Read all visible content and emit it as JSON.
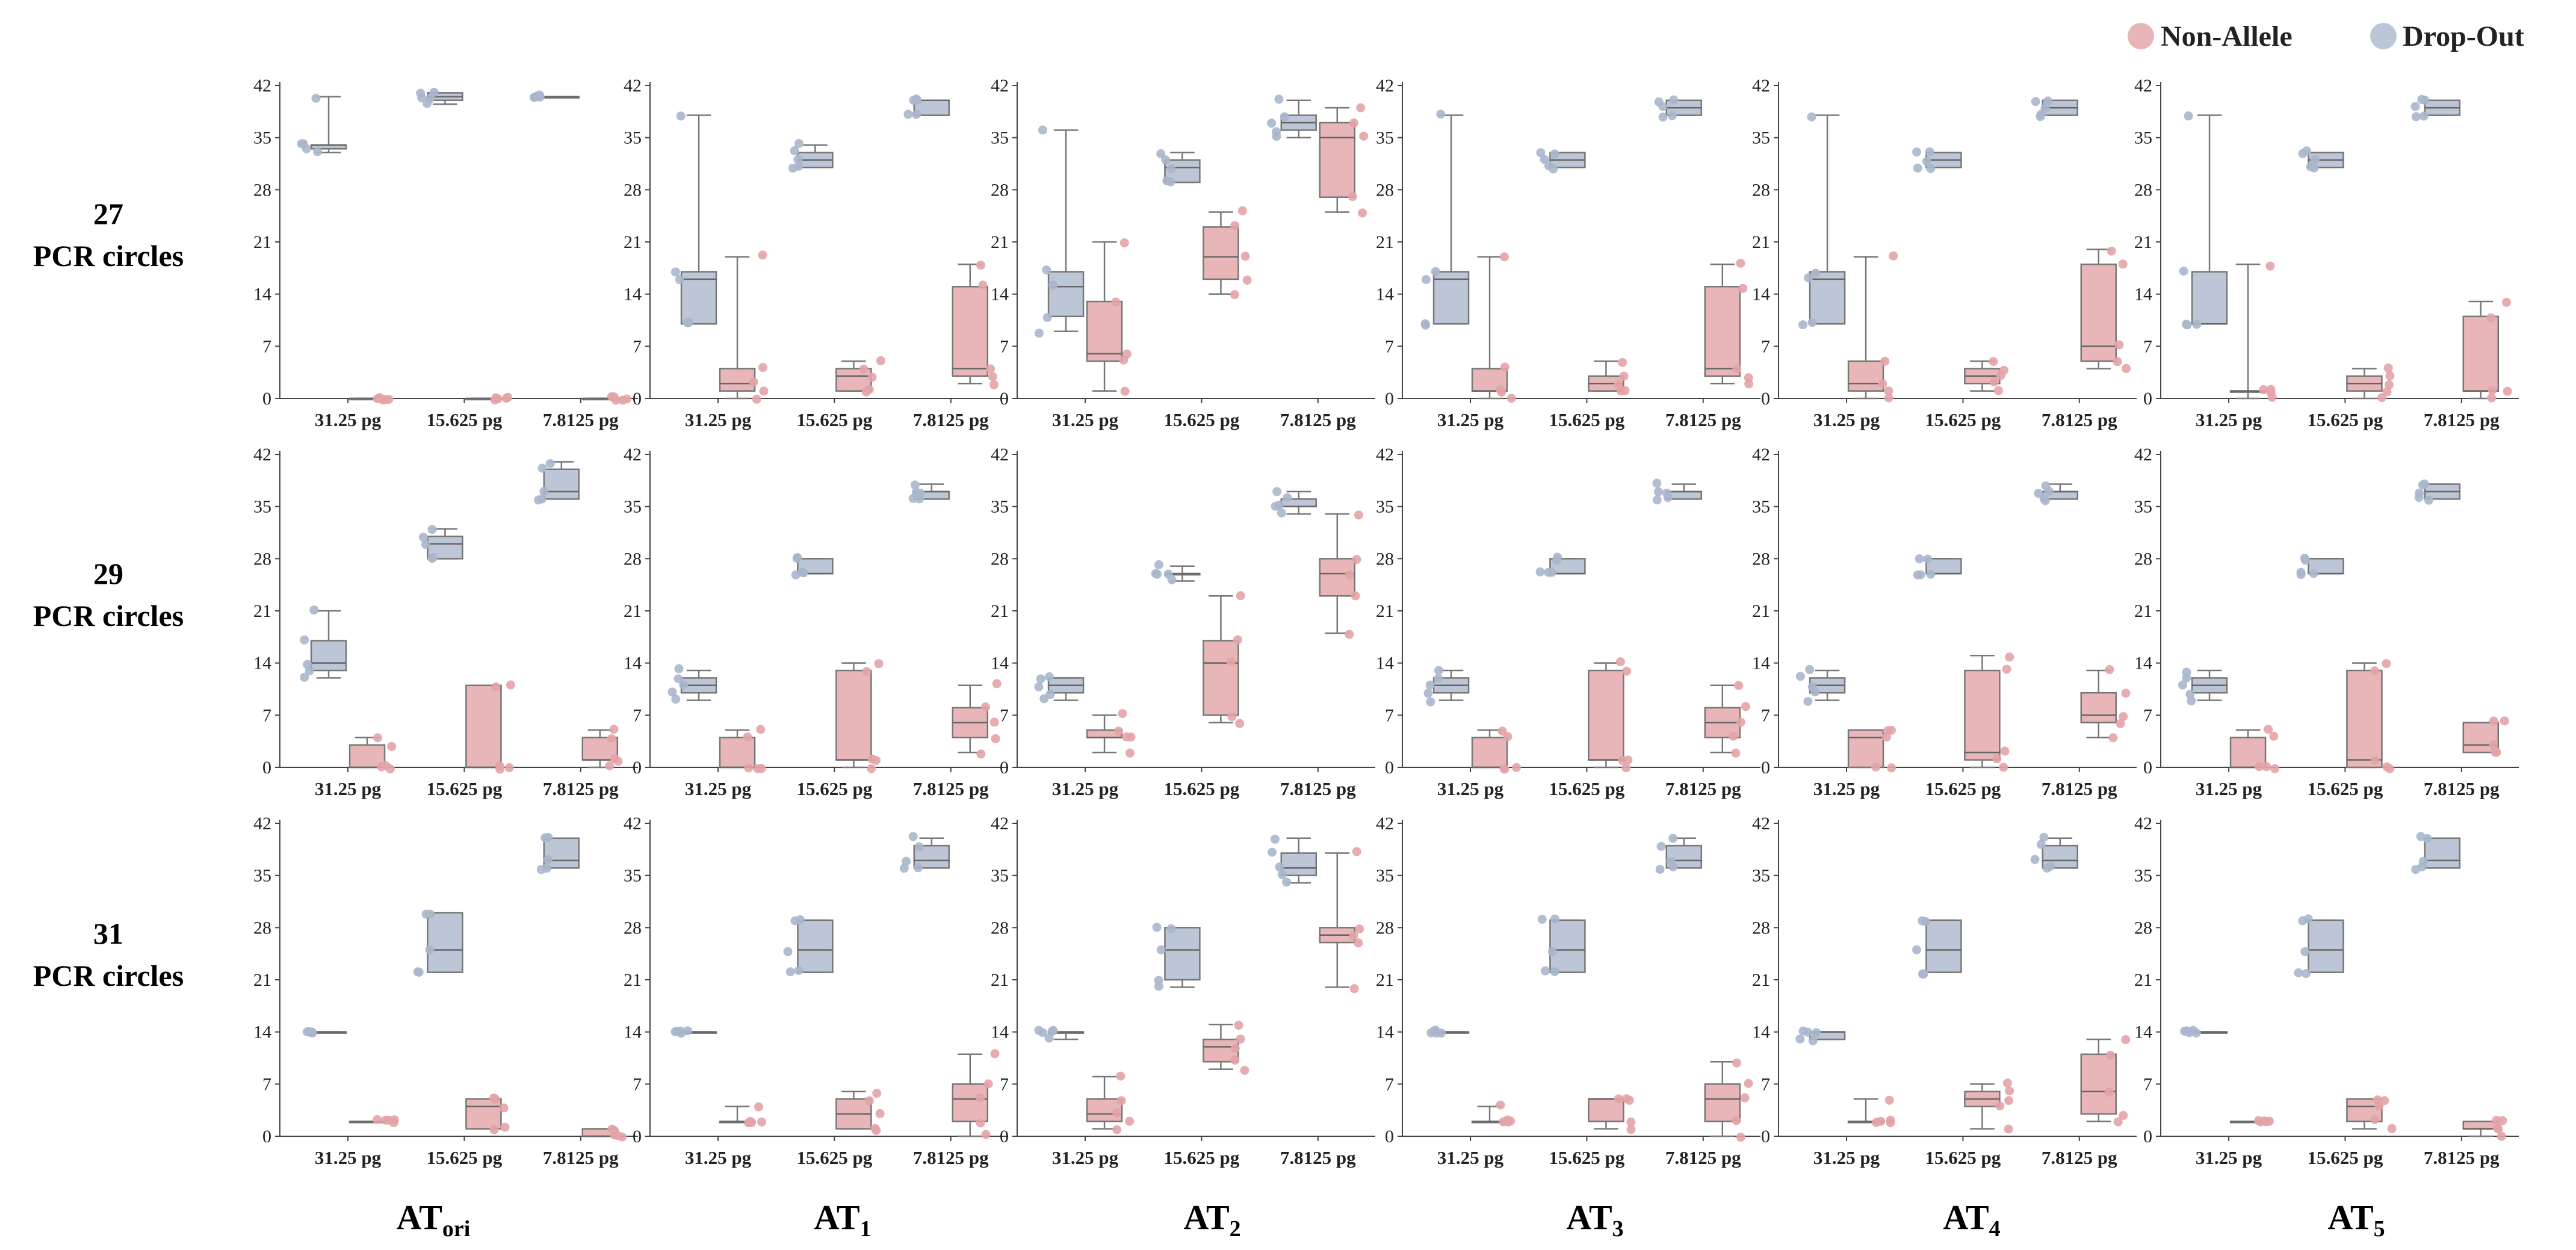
{
  "legend": {
    "non_allele": {
      "label": "Non-Allele",
      "color": "#e8b6b8",
      "edge": "#e3a3a6"
    },
    "drop_out": {
      "label": "Drop-Out",
      "color": "#bcc6d6",
      "edge": "#a9b6cb"
    }
  },
  "row_labels": [
    {
      "number": "27",
      "text": "PCR circles"
    },
    {
      "number": "29",
      "text": "PCR circles"
    },
    {
      "number": "31",
      "text": "PCR circles"
    }
  ],
  "col_labels": [
    {
      "main": "AT",
      "sub": "ori"
    },
    {
      "main": "AT",
      "sub": "1"
    },
    {
      "main": "AT",
      "sub": "2"
    },
    {
      "main": "AT",
      "sub": "3"
    },
    {
      "main": "AT",
      "sub": "4"
    },
    {
      "main": "AT",
      "sub": "5"
    }
  ],
  "chart_data": {
    "type": "box",
    "description": "Grid of box plots: rows = PCR cycles (27, 29, 31), columns = AT variants (ATori, AT1..AT5)",
    "x_categories": [
      "31.25 pg",
      "15.625 pg",
      "7.8125 pg"
    ],
    "y_ticks": [
      0,
      7,
      14,
      21,
      28,
      35,
      42
    ],
    "ylim": [
      0,
      42
    ],
    "series_names": [
      "Drop-Out",
      "Non-Allele"
    ],
    "panels": [
      [
        {
          "title": "ATori / 27",
          "groups": [
            {
              "d": [
                33,
                33.5,
                34,
                34,
                40.5
              ],
              "n": [
                0,
                0,
                0,
                0,
                0
              ]
            },
            {
              "d": [
                39.5,
                40,
                40.5,
                41,
                41
              ],
              "n": [
                0,
                0,
                0,
                0,
                0
              ]
            },
            {
              "d": [
                40.5,
                40.5,
                40.5,
                40.5,
                40.5
              ],
              "n": [
                0,
                0,
                0,
                0,
                0
              ]
            }
          ]
        },
        {
          "title": "AT1 / 27",
          "groups": [
            {
              "d": [
                10,
                10,
                16,
                17,
                38
              ],
              "n": [
                0,
                1,
                2,
                4,
                19
              ]
            },
            {
              "d": [
                31,
                31,
                32,
                33,
                34
              ],
              "n": [
                1,
                1,
                3,
                4,
                5
              ]
            },
            {
              "d": [
                38,
                38,
                40,
                40,
                40
              ],
              "n": [
                2,
                3,
                4,
                15,
                18
              ]
            }
          ]
        },
        {
          "title": "AT2 / 27",
          "groups": [
            {
              "d": [
                9,
                11,
                15,
                17,
                36
              ],
              "n": [
                1,
                5,
                6,
                13,
                21
              ]
            },
            {
              "d": [
                29,
                29,
                31,
                32,
                33
              ],
              "n": [
                14,
                16,
                19,
                23,
                25
              ]
            },
            {
              "d": [
                35,
                36,
                37,
                38,
                40
              ],
              "n": [
                25,
                27,
                35,
                37,
                39
              ]
            }
          ]
        },
        {
          "title": "AT3 / 27",
          "groups": [
            {
              "d": [
                10,
                10,
                16,
                17,
                38
              ],
              "n": [
                0,
                1,
                1,
                4,
                19
              ]
            },
            {
              "d": [
                31,
                31,
                32,
                33,
                33
              ],
              "n": [
                1,
                1,
                2,
                3,
                5
              ]
            },
            {
              "d": [
                38,
                38,
                39,
                40,
                40
              ],
              "n": [
                2,
                3,
                4,
                15,
                18
              ]
            }
          ]
        },
        {
          "title": "AT4 / 27",
          "groups": [
            {
              "d": [
                10,
                10,
                16,
                17,
                38
              ],
              "n": [
                0,
                1,
                2,
                5,
                19
              ]
            },
            {
              "d": [
                31,
                31,
                32,
                33,
                33
              ],
              "n": [
                1,
                2,
                3,
                4,
                5
              ]
            },
            {
              "d": [
                38,
                38,
                39,
                40,
                40
              ],
              "n": [
                4,
                5,
                7,
                18,
                20
              ]
            }
          ]
        },
        {
          "title": "AT5 / 27",
          "groups": [
            {
              "d": [
                10,
                10,
                10,
                17,
                38
              ],
              "n": [
                0,
                1,
                1,
                1,
                18
              ]
            },
            {
              "d": [
                31,
                31,
                32,
                33,
                33
              ],
              "n": [
                0,
                1,
                2,
                3,
                4
              ]
            },
            {
              "d": [
                38,
                38,
                39,
                40,
                40
              ],
              "n": [
                0,
                1,
                1,
                11,
                13
              ]
            }
          ]
        }
      ],
      [
        {
          "title": "ATori / 29",
          "groups": [
            {
              "d": [
                12,
                13,
                14,
                17,
                21
              ],
              "n": [
                0,
                0,
                0,
                3,
                4
              ]
            },
            {
              "d": [
                28,
                28,
                30,
                31,
                32
              ],
              "n": [
                0,
                0,
                0,
                11,
                11
              ]
            },
            {
              "d": [
                36,
                36,
                37,
                40,
                41
              ],
              "n": [
                0,
                1,
                1,
                4,
                5
              ]
            }
          ]
        },
        {
          "title": "AT1 / 29",
          "groups": [
            {
              "d": [
                9,
                10,
                11,
                12,
                13
              ],
              "n": [
                0,
                0,
                0,
                4,
                5
              ]
            },
            {
              "d": [
                26,
                26,
                26,
                28,
                28
              ],
              "n": [
                0,
                1,
                1,
                13,
                14
              ]
            },
            {
              "d": [
                36,
                36,
                37,
                37,
                38
              ],
              "n": [
                2,
                4,
                6,
                8,
                11
              ]
            }
          ]
        },
        {
          "title": "AT2 / 29",
          "groups": [
            {
              "d": [
                9,
                10,
                11,
                12,
                12
              ],
              "n": [
                2,
                4,
                4,
                5,
                7
              ]
            },
            {
              "d": [
                25,
                26,
                26,
                26,
                27
              ],
              "n": [
                6,
                7,
                14,
                17,
                23
              ]
            },
            {
              "d": [
                34,
                35,
                35,
                36,
                37
              ],
              "n": [
                18,
                23,
                26,
                28,
                34
              ]
            }
          ]
        },
        {
          "title": "AT3 / 29",
          "groups": [
            {
              "d": [
                9,
                10,
                11,
                12,
                13
              ],
              "n": [
                0,
                0,
                0,
                4,
                5
              ]
            },
            {
              "d": [
                26,
                26,
                26,
                28,
                28
              ],
              "n": [
                0,
                1,
                1,
                13,
                14
              ]
            },
            {
              "d": [
                36,
                36,
                37,
                37,
                38
              ],
              "n": [
                2,
                4,
                6,
                8,
                11
              ]
            }
          ]
        },
        {
          "title": "AT4 / 29",
          "groups": [
            {
              "d": [
                9,
                10,
                11,
                12,
                13
              ],
              "n": [
                0,
                0,
                4,
                5,
                5
              ]
            },
            {
              "d": [
                26,
                26,
                26,
                28,
                28
              ],
              "n": [
                0,
                1,
                2,
                13,
                15
              ]
            },
            {
              "d": [
                36,
                36,
                37,
                37,
                38
              ],
              "n": [
                4,
                6,
                7,
                10,
                13
              ]
            }
          ]
        },
        {
          "title": "AT5 / 29",
          "groups": [
            {
              "d": [
                9,
                10,
                11,
                12,
                13
              ],
              "n": [
                0,
                0,
                0,
                4,
                5
              ]
            },
            {
              "d": [
                26,
                26,
                26,
                28,
                28
              ],
              "n": [
                0,
                0,
                1,
                13,
                14
              ]
            },
            {
              "d": [
                36,
                36,
                37,
                38,
                38
              ],
              "n": [
                2,
                2,
                3,
                6,
                6
              ]
            }
          ]
        }
      ],
      [
        {
          "title": "ATori / 31",
          "groups": [
            {
              "d": [
                14,
                14,
                14,
                14,
                14
              ],
              "n": [
                2,
                2,
                2,
                2,
                2
              ]
            },
            {
              "d": [
                22,
                22,
                25,
                30,
                30
              ],
              "n": [
                1,
                1,
                4,
                5,
                5
              ]
            },
            {
              "d": [
                36,
                36,
                37,
                40,
                40
              ],
              "n": [
                0,
                0,
                0,
                1,
                1
              ]
            }
          ]
        },
        {
          "title": "AT1 / 31",
          "groups": [
            {
              "d": [
                14,
                14,
                14,
                14,
                14
              ],
              "n": [
                2,
                2,
                2,
                2,
                4
              ]
            },
            {
              "d": [
                22,
                22,
                25,
                29,
                29
              ],
              "n": [
                1,
                1,
                3,
                5,
                6
              ]
            },
            {
              "d": [
                36,
                36,
                37,
                39,
                40
              ],
              "n": [
                0,
                2,
                5,
                7,
                11
              ]
            }
          ]
        },
        {
          "title": "AT2 / 31",
          "groups": [
            {
              "d": [
                13,
                14,
                14,
                14,
                14
              ],
              "n": [
                1,
                2,
                3,
                5,
                8
              ]
            },
            {
              "d": [
                20,
                21,
                25,
                28,
                28
              ],
              "n": [
                9,
                10,
                12,
                13,
                15
              ]
            },
            {
              "d": [
                34,
                35,
                36,
                38,
                40
              ],
              "n": [
                20,
                26,
                27,
                28,
                38
              ]
            }
          ]
        },
        {
          "title": "AT3 / 31",
          "groups": [
            {
              "d": [
                14,
                14,
                14,
                14,
                14
              ],
              "n": [
                2,
                2,
                2,
                2,
                4
              ]
            },
            {
              "d": [
                22,
                22,
                25,
                29,
                29
              ],
              "n": [
                1,
                2,
                5,
                5,
                5
              ]
            },
            {
              "d": [
                36,
                36,
                37,
                39,
                40
              ],
              "n": [
                0,
                2,
                5,
                7,
                10
              ]
            }
          ]
        },
        {
          "title": "AT4 / 31",
          "groups": [
            {
              "d": [
                13,
                13,
                14,
                14,
                14
              ],
              "n": [
                2,
                2,
                2,
                2,
                5
              ]
            },
            {
              "d": [
                22,
                22,
                25,
                29,
                29
              ],
              "n": [
                1,
                4,
                5,
                6,
                7
              ]
            },
            {
              "d": [
                36,
                36,
                37,
                39,
                40
              ],
              "n": [
                2,
                3,
                6,
                11,
                13
              ]
            }
          ]
        },
        {
          "title": "AT5 / 31",
          "groups": [
            {
              "d": [
                14,
                14,
                14,
                14,
                14
              ],
              "n": [
                2,
                2,
                2,
                2,
                2
              ]
            },
            {
              "d": [
                22,
                22,
                25,
                29,
                29
              ],
              "n": [
                1,
                2,
                4,
                5,
                5
              ]
            },
            {
              "d": [
                36,
                36,
                37,
                40,
                40
              ],
              "n": [
                0,
                1,
                1,
                2,
                2
              ]
            }
          ]
        }
      ]
    ]
  }
}
